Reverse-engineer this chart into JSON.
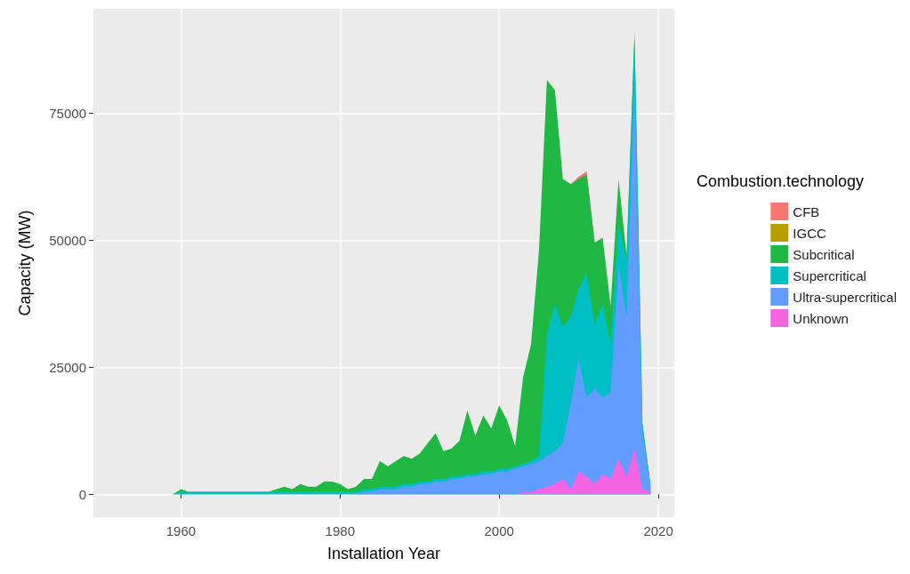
{
  "chart_data": {
    "type": "area",
    "stacked": true,
    "xlabel": "Installation Year",
    "ylabel": "Capacity (MW)",
    "legend_title": "Combustion.technology",
    "legend": "right",
    "grid": true,
    "marker": "none",
    "x": [
      1959,
      1960,
      1961,
      1962,
      1963,
      1964,
      1965,
      1966,
      1967,
      1968,
      1969,
      1970,
      1971,
      1972,
      1973,
      1974,
      1975,
      1976,
      1977,
      1978,
      1979,
      1980,
      1981,
      1982,
      1983,
      1984,
      1985,
      1986,
      1987,
      1988,
      1989,
      1990,
      1991,
      1992,
      1993,
      1994,
      1995,
      1996,
      1997,
      1998,
      1999,
      2000,
      2001,
      2002,
      2003,
      2004,
      2005,
      2006,
      2007,
      2008,
      2009,
      2010,
      2011,
      2012,
      2013,
      2014,
      2015,
      2016,
      2017,
      2018,
      2019
    ],
    "xlim": [
      1949,
      2022
    ],
    "xticks": [
      1960,
      1980,
      2000,
      2020
    ],
    "ylim": [
      -4500,
      95500
    ],
    "yticks": [
      0,
      25000,
      50000,
      75000
    ],
    "series": [
      {
        "name": "Unknown",
        "color": "#f564e3",
        "values": [
          0,
          0,
          0,
          0,
          0,
          0,
          0,
          0,
          0,
          0,
          0,
          0,
          0,
          0,
          0,
          0,
          0,
          0,
          0,
          0,
          0,
          0,
          0,
          0,
          0,
          0,
          0,
          0,
          0,
          0,
          0,
          0,
          0,
          0,
          0,
          0,
          0,
          0,
          0,
          0,
          0,
          0,
          0,
          0,
          500,
          500,
          1000,
          1500,
          2000,
          3000,
          1000,
          4500,
          3500,
          2000,
          4000,
          3000,
          7000,
          3500,
          9000,
          1000,
          500
        ]
      },
      {
        "name": "Ultra-supercritical",
        "color": "#619cff",
        "values": [
          0,
          0,
          0,
          0,
          0,
          0,
          0,
          0,
          0,
          0,
          0,
          0,
          0,
          0,
          0,
          0,
          0,
          0,
          0,
          0,
          0,
          0,
          0,
          0,
          500,
          500,
          1000,
          1000,
          1000,
          1500,
          1500,
          2000,
          2000,
          2500,
          2500,
          3000,
          3000,
          3500,
          3500,
          4000,
          4000,
          4500,
          4500,
          5000,
          5000,
          5500,
          5500,
          6000,
          6500,
          7000,
          17000,
          22000,
          15500,
          19000,
          15000,
          17000,
          38000,
          31500,
          71000,
          11000,
          1500
        ]
      },
      {
        "name": "Supercritical",
        "color": "#00bfc4",
        "values": [
          0,
          500,
          500,
          500,
          500,
          500,
          500,
          500,
          500,
          500,
          500,
          500,
          500,
          500,
          500,
          500,
          500,
          500,
          500,
          500,
          500,
          500,
          500,
          500,
          500,
          500,
          500,
          500,
          500,
          500,
          500,
          500,
          500,
          500,
          500,
          500,
          500,
          500,
          500,
          500,
          500,
          500,
          500,
          500,
          500,
          500,
          1000,
          24000,
          29000,
          23000,
          17000,
          14000,
          24500,
          12500,
          18500,
          9500,
          8500,
          11000,
          10000,
          1500,
          0
        ]
      },
      {
        "name": "Subcritical",
        "color": "#1fb843",
        "values": [
          0,
          500,
          0,
          0,
          0,
          0,
          0,
          0,
          0,
          0,
          0,
          0,
          0,
          500,
          1000,
          500,
          1500,
          1000,
          1000,
          2000,
          2000,
          1500,
          500,
          1000,
          2000,
          2000,
          5000,
          4000,
          5000,
          5500,
          5000,
          5500,
          7500,
          9000,
          5500,
          5500,
          7000,
          12500,
          7500,
          11000,
          8500,
          12500,
          9500,
          4000,
          17000,
          23000,
          40500,
          50000,
          42000,
          29000,
          26000,
          21500,
          19500,
          16000,
          13000,
          7500,
          8500,
          1000,
          1000,
          500,
          0
        ]
      },
      {
        "name": "IGCC",
        "color": "#b79f00",
        "values": [
          null,
          null,
          null,
          null,
          null,
          null,
          null,
          null,
          null,
          null,
          null,
          null,
          null,
          null,
          null,
          null,
          null,
          null,
          null,
          null,
          null,
          null,
          null,
          null,
          null,
          null,
          null,
          null,
          null,
          null,
          null,
          null,
          null,
          null,
          null,
          null,
          null,
          null,
          null,
          null,
          null,
          null,
          null,
          null,
          null,
          null,
          null,
          null,
          null,
          null,
          null,
          null,
          null,
          null,
          null,
          null,
          null,
          null,
          null,
          null,
          null
        ]
      },
      {
        "name": "CFB",
        "color": "#f8766d",
        "values": [
          null,
          null,
          null,
          null,
          null,
          null,
          null,
          null,
          null,
          null,
          null,
          null,
          null,
          null,
          null,
          null,
          null,
          null,
          null,
          null,
          null,
          null,
          null,
          null,
          null,
          null,
          null,
          null,
          null,
          null,
          null,
          null,
          null,
          null,
          null,
          null,
          null,
          null,
          null,
          null,
          null,
          null,
          null,
          null,
          null,
          null,
          null,
          null,
          null,
          null,
          0,
          500,
          500,
          0,
          null,
          null,
          null,
          null,
          null,
          null,
          null
        ]
      }
    ]
  }
}
